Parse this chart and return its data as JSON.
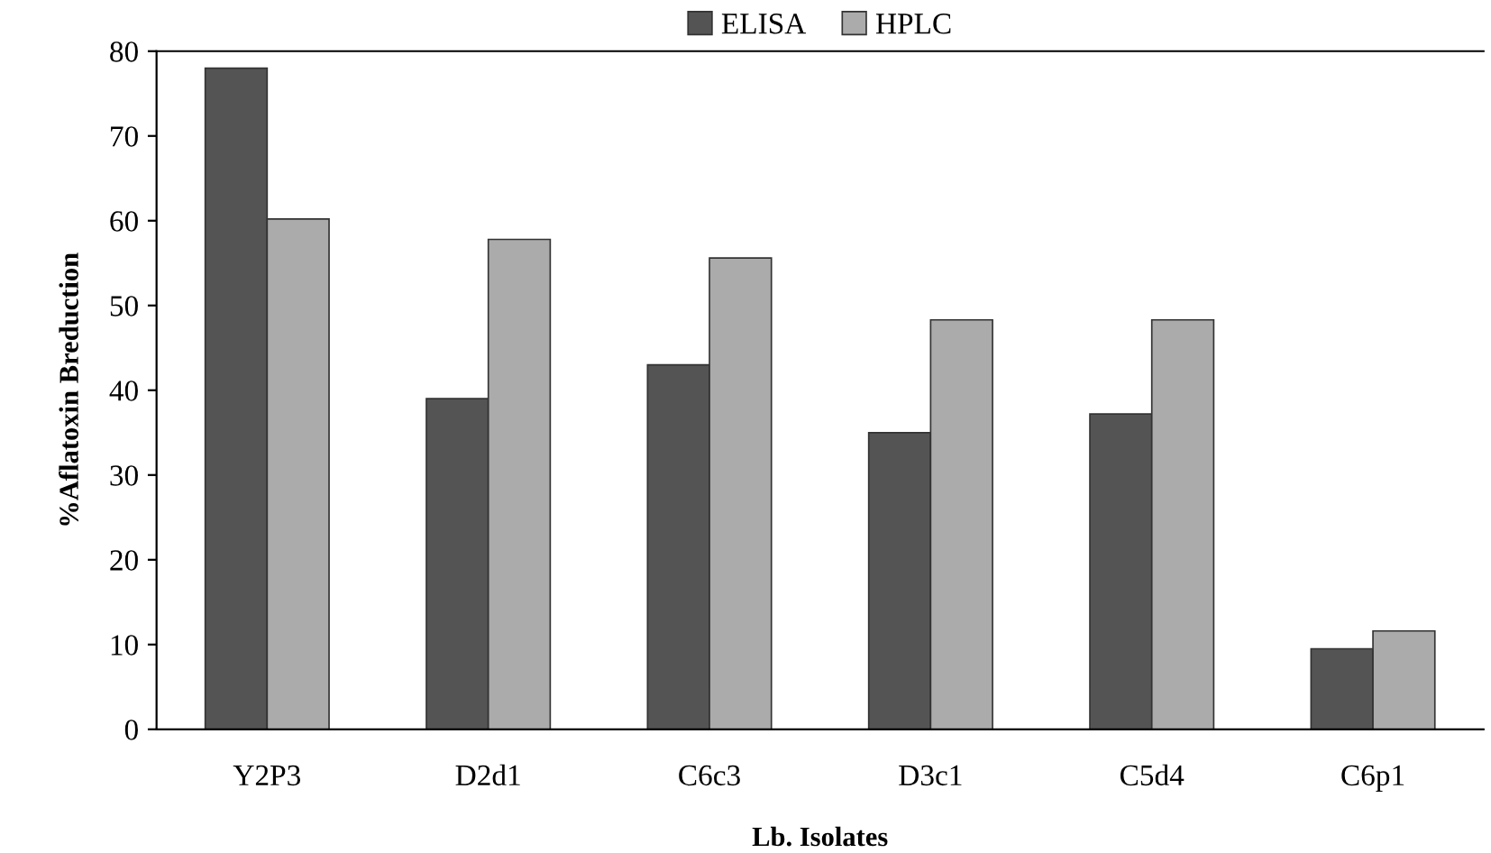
{
  "chart_data": {
    "type": "bar",
    "xlabel": "Lb. Isolates",
    "ylabel": "%Aflatoxin Breduction",
    "categories": [
      "Y2P3",
      "D2d1",
      "C6c3",
      "D3c1",
      "C5d4",
      "C6p1"
    ],
    "series": [
      {
        "name": "ELISA",
        "color": "#545454",
        "values": [
          78,
          39,
          43,
          35,
          37.2,
          9.5
        ]
      },
      {
        "name": "HPLC",
        "color": "#ababab",
        "values": [
          60.2,
          57.8,
          55.6,
          48.3,
          48.3,
          11.6
        ]
      }
    ],
    "ylim": [
      0,
      80
    ],
    "yticks": [
      0,
      10,
      20,
      30,
      40,
      50,
      60,
      70,
      80
    ],
    "grid": false,
    "legend": "top"
  }
}
